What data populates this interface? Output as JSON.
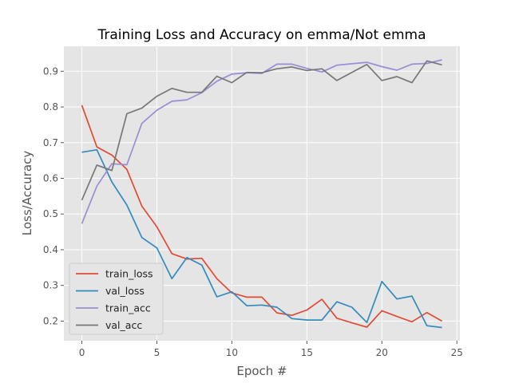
{
  "chart_data": {
    "type": "line",
    "title": "Training Loss and Accuracy on emma/Not emma",
    "xlabel": "Epoch #",
    "ylabel": "Loss/Accuracy",
    "xlim": [
      -1.2,
      25.2
    ],
    "ylim": [
      0.145,
      0.97
    ],
    "xticks": [
      0,
      5,
      10,
      15,
      20,
      25
    ],
    "yticks": [
      0.2,
      0.3,
      0.4,
      0.5,
      0.6,
      0.7,
      0.8,
      0.9
    ],
    "grid": true,
    "legend_position": "lower-left",
    "x": [
      0,
      1,
      2,
      3,
      4,
      5,
      6,
      7,
      8,
      9,
      10,
      11,
      12,
      13,
      14,
      15,
      16,
      17,
      18,
      19,
      20,
      21,
      22,
      23,
      24
    ],
    "series": [
      {
        "name": "train_loss",
        "color": "#e24a33",
        "values": [
          0.805,
          0.688,
          0.665,
          0.625,
          0.522,
          0.464,
          0.389,
          0.374,
          0.376,
          0.319,
          0.279,
          0.267,
          0.267,
          0.223,
          0.216,
          0.231,
          0.261,
          0.208,
          0.195,
          0.183,
          0.229,
          0.213,
          0.198,
          0.224,
          0.2
        ]
      },
      {
        "name": "val_loss",
        "color": "#348abd",
        "values": [
          0.673,
          0.68,
          0.59,
          0.525,
          0.434,
          0.405,
          0.319,
          0.378,
          0.357,
          0.268,
          0.282,
          0.243,
          0.245,
          0.239,
          0.207,
          0.203,
          0.203,
          0.254,
          0.239,
          0.196,
          0.311,
          0.262,
          0.27,
          0.187,
          0.182
        ]
      },
      {
        "name": "train_acc",
        "color": "#988ed5",
        "values": [
          0.473,
          0.578,
          0.641,
          0.638,
          0.754,
          0.791,
          0.816,
          0.82,
          0.84,
          0.872,
          0.892,
          0.896,
          0.894,
          0.92,
          0.92,
          0.908,
          0.898,
          0.917,
          0.921,
          0.925,
          0.913,
          0.903,
          0.92,
          0.922,
          0.932
        ]
      },
      {
        "name": "val_acc",
        "color": "#777777",
        "values": [
          0.539,
          0.637,
          0.622,
          0.781,
          0.797,
          0.83,
          0.852,
          0.841,
          0.841,
          0.886,
          0.868,
          0.897,
          0.896,
          0.907,
          0.912,
          0.902,
          0.907,
          0.874,
          0.897,
          0.919,
          0.874,
          0.885,
          0.868,
          0.929,
          0.918
        ]
      }
    ]
  },
  "style": {
    "figure_bg": "#ffffff",
    "plot_bg": "#e5e5e5",
    "grid_color": "#ffffff",
    "tick_color": "#555555",
    "legend_bg": "#e5e5e5",
    "legend_border": "#cccccc"
  }
}
